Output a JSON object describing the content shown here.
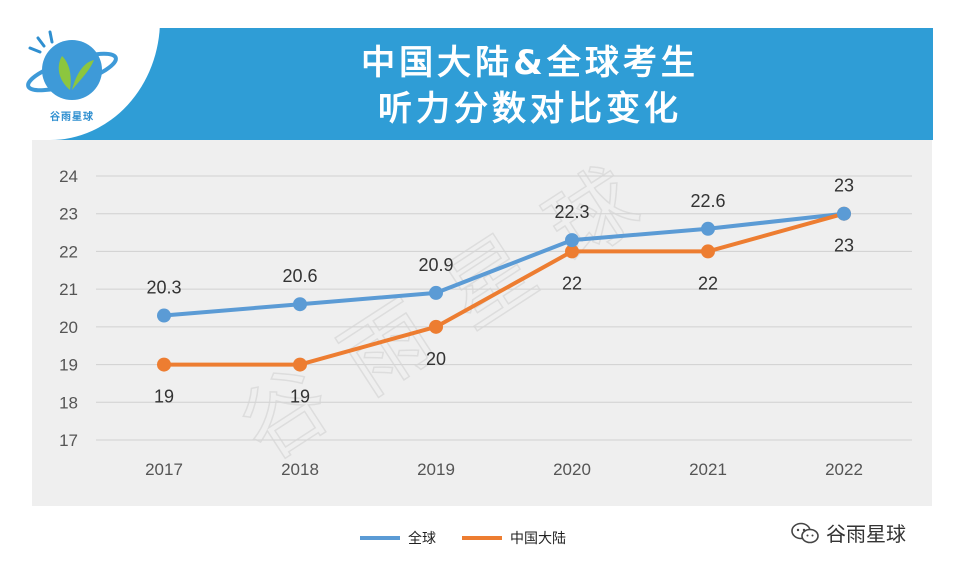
{
  "header": {
    "title_line1": "中国大陆&全球考生",
    "title_line2": "听力分数对比变化",
    "logo_text": "谷雨星球"
  },
  "brand_label": "谷雨星球",
  "watermark": "谷雨星球",
  "colors": {
    "header_bg": "#2f9dd6",
    "global": "#5b9bd5",
    "mainland": "#ed7d31",
    "plot_bg": "#efefef"
  },
  "chart_data": {
    "type": "line",
    "title": "中国大陆&全球考生 听力分数对比变化",
    "categories": [
      "2017",
      "2018",
      "2019",
      "2020",
      "2021",
      "2022"
    ],
    "series": [
      {
        "name": "全球",
        "values": [
          20.3,
          20.6,
          20.9,
          22.3,
          22.6,
          23
        ],
        "labels": [
          "20.3",
          "20.6",
          "20.9",
          "22.3",
          "22.6",
          "23"
        ]
      },
      {
        "name": "中国大陆",
        "values": [
          19,
          19,
          20,
          22,
          22,
          23
        ],
        "labels": [
          "19",
          "19",
          "20",
          "22",
          "22",
          "23"
        ]
      }
    ],
    "ylim": [
      17,
      24
    ],
    "yticks": [
      "17",
      "18",
      "19",
      "20",
      "21",
      "22",
      "23",
      "24"
    ],
    "grid": true,
    "legend_position": "bottom"
  }
}
